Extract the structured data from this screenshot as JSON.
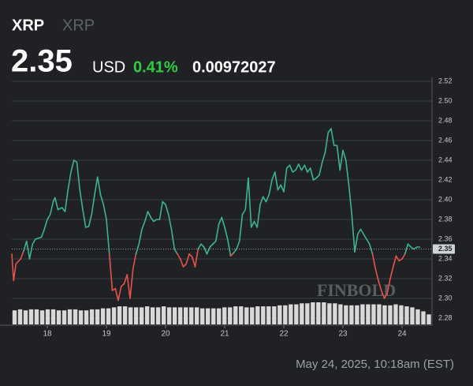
{
  "header": {
    "symbol": "XRP",
    "name": "XRP",
    "price": 2.35,
    "currency": "USD",
    "change": "0.41%",
    "btc_price": "0.00972027"
  },
  "footer": "May 24, 2025, 10:18am (EST)",
  "watermark": "FINBOLD",
  "chart_data": {
    "type": "line",
    "x": [
      17.4,
      17.43,
      17.47,
      17.55,
      17.6,
      17.65,
      17.7,
      17.75,
      17.8,
      17.9,
      17.95,
      18.0,
      18.05,
      18.1,
      18.13,
      18.18,
      18.25,
      18.3,
      18.35,
      18.4,
      18.45,
      18.5,
      18.55,
      18.6,
      18.65,
      18.7,
      18.75,
      18.8,
      18.85,
      18.9,
      18.95,
      19.0,
      19.05,
      19.1,
      19.15,
      19.2,
      19.25,
      19.3,
      19.35,
      19.4,
      19.45,
      19.5,
      19.55,
      19.6,
      19.65,
      19.7,
      19.75,
      19.8,
      19.85,
      19.9,
      19.95,
      20.0,
      20.05,
      20.1,
      20.15,
      20.2,
      20.25,
      20.3,
      20.35,
      20.4,
      20.45,
      20.5,
      20.55,
      20.6,
      20.65,
      20.7,
      20.75,
      20.8,
      20.85,
      20.9,
      20.95,
      21.0,
      21.05,
      21.1,
      21.15,
      21.2,
      21.25,
      21.3,
      21.35,
      21.4,
      21.45,
      21.5,
      21.55,
      21.6,
      21.65,
      21.7,
      21.75,
      21.8,
      21.85,
      21.9,
      21.95,
      22.0,
      22.05,
      22.1,
      22.15,
      22.2,
      22.25,
      22.3,
      22.35,
      22.4,
      22.45,
      22.5,
      22.55,
      22.6,
      22.65,
      22.7,
      22.75,
      22.8,
      22.85,
      22.9,
      22.95,
      23.0,
      23.05,
      23.1,
      23.15,
      23.2,
      23.25,
      23.3,
      23.35,
      23.4,
      23.45,
      23.5,
      23.55,
      23.6,
      23.65,
      23.7,
      23.75,
      23.8,
      23.85,
      23.9,
      23.95,
      24.0,
      24.05,
      24.1,
      24.15,
      24.2,
      24.25,
      24.3
    ],
    "series": [
      {
        "name": "XRP",
        "up_color": "#3bb58c",
        "down_color": "#e5534b",
        "values": [
          2.345,
          2.318,
          2.335,
          2.34,
          2.348,
          2.358,
          2.34,
          2.355,
          2.36,
          2.362,
          2.37,
          2.38,
          2.385,
          2.398,
          2.402,
          2.39,
          2.392,
          2.388,
          2.41,
          2.428,
          2.44,
          2.438,
          2.41,
          2.39,
          2.372,
          2.373,
          2.385,
          2.405,
          2.423,
          2.405,
          2.395,
          2.38,
          2.345,
          2.308,
          2.31,
          2.298,
          2.312,
          2.315,
          2.324,
          2.3,
          2.33,
          2.345,
          2.355,
          2.37,
          2.378,
          2.388,
          2.382,
          2.378,
          2.38,
          2.38,
          2.398,
          2.395,
          2.385,
          2.37,
          2.35,
          2.345,
          2.34,
          2.332,
          2.335,
          2.345,
          2.342,
          2.332,
          2.35,
          2.355,
          2.352,
          2.345,
          2.352,
          2.355,
          2.358,
          2.375,
          2.382,
          2.372,
          2.36,
          2.343,
          2.346,
          2.35,
          2.358,
          2.385,
          2.39,
          2.422,
          2.372,
          2.378,
          2.372,
          2.395,
          2.403,
          2.398,
          2.405,
          2.42,
          2.428,
          2.41,
          2.415,
          2.408,
          2.432,
          2.435,
          2.428,
          2.43,
          2.436,
          2.43,
          2.435,
          2.428,
          2.432,
          2.42,
          2.422,
          2.425,
          2.438,
          2.448,
          2.468,
          2.472,
          2.455,
          2.455,
          2.43,
          2.45,
          2.44,
          2.415,
          2.385,
          2.347,
          2.365,
          2.37,
          2.365,
          2.36,
          2.355,
          2.345,
          2.33,
          2.318,
          2.308,
          2.3,
          2.305,
          2.32,
          2.332,
          2.343,
          2.338,
          2.34,
          2.345,
          2.355,
          2.352,
          2.35,
          2.352,
          2.352
        ]
      }
    ],
    "volume": {
      "color": "#d9d9d9",
      "values": [
        14,
        15,
        14,
        15,
        15,
        14,
        15,
        15,
        14,
        14,
        15,
        15,
        14,
        14,
        15,
        15,
        16,
        16,
        17,
        18,
        18,
        17,
        17,
        17,
        18,
        17,
        17,
        18,
        17,
        17,
        17,
        17,
        17,
        17,
        16,
        16,
        16,
        16,
        17,
        17,
        18,
        18,
        17,
        17,
        18,
        18,
        18,
        18,
        19,
        19,
        20,
        20,
        21,
        21,
        22,
        22,
        22,
        21,
        21,
        20,
        19,
        19,
        19,
        20,
        20,
        20,
        20,
        19,
        19,
        20,
        19,
        18,
        17,
        15,
        13,
        10
      ]
    },
    "xlim": [
      17.4,
      24.5
    ],
    "xticks": [
      18,
      19,
      20,
      21,
      22,
      23,
      24
    ],
    "ylim": [
      2.28,
      2.52
    ],
    "yticks": [
      2.28,
      {
        "value": 2.3,
        "label": "2.30"
      },
      2.32,
      2.34,
      2.36,
      2.38,
      {
        "value": 2.4,
        "label": "2.40"
      },
      2.42,
      2.44,
      2.46,
      2.48,
      {
        "value": 2.5,
        "label": "2.50"
      },
      2.52
    ],
    "grid": true
  }
}
